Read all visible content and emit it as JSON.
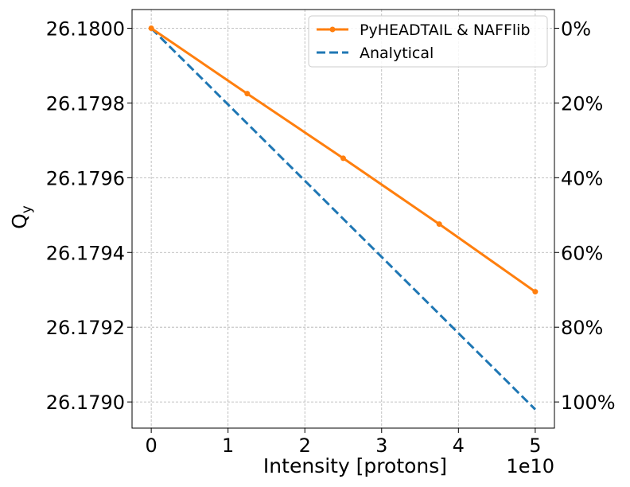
{
  "chart_data": {
    "type": "line",
    "xlabel": "Intensity [protons]",
    "x_offset_label": "1e10",
    "ylabel_main": "Q",
    "ylabel_sub": "y",
    "xlim": [
      -0.25,
      5.25
    ],
    "ylim": [
      26.17893,
      26.18005
    ],
    "x_ticks": [
      0,
      1,
      2,
      3,
      4,
      5
    ],
    "x_tick_labels": [
      "0",
      "1",
      "2",
      "3",
      "4",
      "5"
    ],
    "y_ticks": [
      26.179,
      26.1792,
      26.1794,
      26.1796,
      26.1798,
      26.18
    ],
    "y_tick_labels": [
      "26.1790",
      "26.1792",
      "26.1794",
      "26.1796",
      "26.1798",
      "26.1800"
    ],
    "y2_ticks": [
      0,
      20,
      40,
      60,
      80,
      100
    ],
    "y2_tick_labels": [
      "0%",
      "20%",
      "40%",
      "60%",
      "80%",
      "100%"
    ],
    "grid": true,
    "legend_position": "top-right",
    "series": [
      {
        "name": "PyHEADTAIL & NAFFlib",
        "style": "solid",
        "markers": true,
        "color": "#ff7f0e",
        "x": [
          0,
          1.25,
          2.5,
          3.75,
          5
        ],
        "y": [
          26.18,
          26.179825,
          26.179652,
          26.179476,
          26.179295
        ]
      },
      {
        "name": "Analytical",
        "style": "dashed",
        "markers": false,
        "color": "#1f77b4",
        "x": [
          0,
          5
        ],
        "y": [
          26.18,
          26.17898
        ]
      }
    ]
  }
}
